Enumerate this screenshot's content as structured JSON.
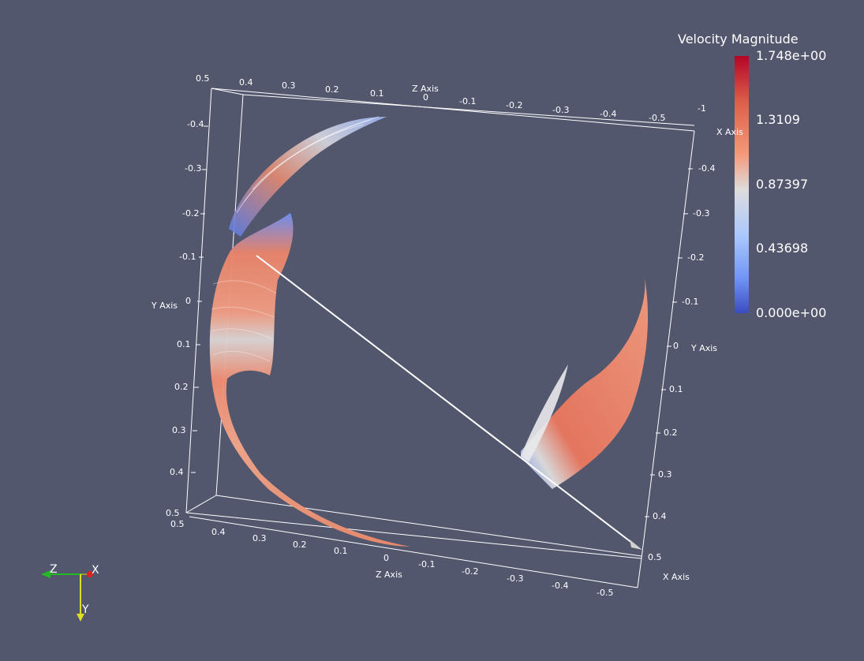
{
  "colorbar": {
    "title": "Velocity Magnitude",
    "labels": [
      "1.748e+00",
      "1.3109",
      "0.87397",
      "0.43698",
      "0.000e+00"
    ],
    "colors": [
      "#b40426",
      "#dd5f4b",
      "#f4987a",
      "#dddcdc",
      "#aac7fd",
      "#7396f5",
      "#3b4cc0"
    ]
  },
  "axes": {
    "z_top_title": "Z Axis",
    "x_top_title": "X Axis",
    "y_left_title": "Y Axis",
    "y_right_title": "Y Axis",
    "z_bottom_title": "Z Axis",
    "x_bottom_title": "X Axis",
    "top_ticks": [
      "0.5",
      "0.4",
      "0.3",
      "0.2",
      "0.1",
      "0",
      "-0.1",
      "-0.2",
      "-0.3",
      "-0.4",
      "-0.5",
      "-1"
    ],
    "left_ticks": [
      "-0.4",
      "-0.3",
      "-0.2",
      "-0.1",
      "0",
      "0.1",
      "0.2",
      "0.3",
      "0.4",
      "0.5"
    ],
    "right_ticks": [
      "-0.4",
      "-0.3",
      "-0.2",
      "-0.1",
      "0",
      "0.1",
      "0.2",
      "0.3",
      "0.4",
      "0.5"
    ],
    "bottom_z_ticks": [
      "0.5",
      "0.4",
      "0.3",
      "0.2",
      "0.1",
      "0"
    ],
    "bottom_x_ticks": [
      "-0.1",
      "-0.2",
      "-0.3",
      "-0.4",
      "-0.5"
    ]
  },
  "orientation_triad": {
    "x": "X",
    "y": "Y",
    "z": "Z"
  }
}
